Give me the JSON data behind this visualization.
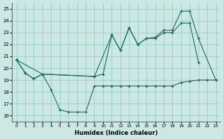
{
  "xlabel": "Humidex (Indice chaleur)",
  "background_color": "#cce8e4",
  "grid_color": "#99ccc6",
  "line_color": "#1a6b60",
  "xlim": [
    -0.5,
    23.5
  ],
  "ylim": [
    15.5,
    25.5
  ],
  "xticks": [
    0,
    1,
    2,
    3,
    4,
    5,
    6,
    7,
    8,
    9,
    10,
    11,
    12,
    13,
    14,
    15,
    16,
    17,
    18,
    19,
    20,
    21,
    22,
    23
  ],
  "yticks": [
    16,
    17,
    18,
    19,
    20,
    21,
    22,
    23,
    24,
    25
  ],
  "series": [
    {
      "x": [
        0,
        1,
        2,
        3,
        4,
        5,
        6,
        7,
        8,
        9,
        10,
        11,
        12,
        13,
        14,
        15,
        16,
        17,
        18,
        19,
        20,
        21,
        22,
        23
      ],
      "y": [
        20.7,
        19.6,
        19.1,
        19.5,
        18.2,
        16.5,
        16.3,
        16.3,
        16.3,
        18.5,
        18.5,
        18.5,
        18.5,
        18.5,
        18.5,
        18.5,
        18.5,
        18.5,
        18.5,
        18.8,
        18.9,
        19.0,
        19.0,
        19.0
      ]
    },
    {
      "x": [
        0,
        1,
        2,
        3,
        9,
        10,
        11,
        12,
        13,
        14,
        15,
        16,
        17,
        18,
        19,
        20,
        21
      ],
      "y": [
        20.7,
        19.6,
        19.1,
        19.5,
        19.3,
        19.5,
        22.8,
        21.5,
        23.4,
        22.0,
        22.5,
        22.5,
        23.0,
        23.0,
        23.8,
        23.8,
        20.5
      ]
    },
    {
      "x": [
        0,
        3,
        9,
        11,
        12,
        13,
        14,
        15,
        16,
        17,
        18,
        19,
        20,
        21,
        23
      ],
      "y": [
        20.7,
        19.5,
        19.3,
        22.8,
        21.5,
        23.4,
        22.0,
        22.5,
        22.6,
        23.2,
        23.2,
        24.8,
        24.8,
        22.5,
        19.0
      ]
    }
  ]
}
